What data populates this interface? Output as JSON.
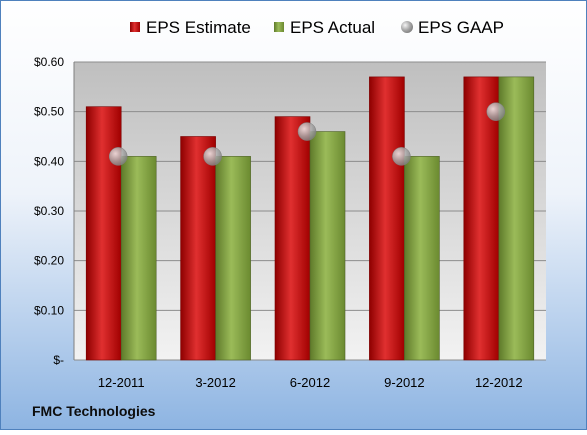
{
  "chart_data": {
    "type": "bar",
    "categories": [
      "12-2011",
      "3-2012",
      "6-2012",
      "9-2012",
      "12-2012"
    ],
    "series": [
      {
        "name": "EPS Estimate",
        "kind": "bar",
        "color": "#C00000",
        "values": [
          0.51,
          0.45,
          0.49,
          0.57,
          0.57
        ]
      },
      {
        "name": "EPS Actual",
        "kind": "bar",
        "color": "#7F9F3C",
        "values": [
          0.41,
          0.41,
          0.46,
          0.41,
          0.57
        ]
      },
      {
        "name": "EPS GAAP",
        "kind": "marker",
        "color": "#A6A6A6",
        "values": [
          0.41,
          0.41,
          0.46,
          0.41,
          0.5
        ]
      }
    ],
    "yticks": [
      0,
      0.1,
      0.2,
      0.3,
      0.4,
      0.5,
      0.6
    ],
    "ytick_labels": [
      "$-",
      "$0.10",
      "$0.20",
      "$0.30",
      "$0.40",
      "$0.50",
      "$0.60"
    ],
    "ylim": [
      0,
      0.6
    ],
    "grid": true,
    "legend_position": "top"
  },
  "footer": {
    "company": "FMC Technologies"
  },
  "colors": {
    "background_top": "#FFFFFF",
    "background_bottom": "#8DB4E2",
    "plot_top": "#BFBFBF",
    "plot_bottom": "#F2F2F2"
  }
}
